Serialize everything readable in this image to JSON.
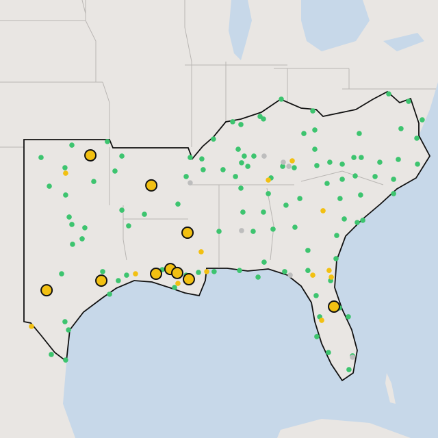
{
  "layers": [
    {
      "color": "#3dc46f",
      "outline": false,
      "points": [
        [
          -96.82,
          36.72
        ],
        [
          -94.71,
          36.9
        ],
        [
          -98.65,
          36.09
        ],
        [
          -97.23,
          35.57
        ],
        [
          -93.85,
          36.16
        ],
        [
          -94.26,
          35.4
        ],
        [
          -98.16,
          34.63
        ],
        [
          -97.19,
          34.18
        ],
        [
          -95.52,
          34.87
        ],
        [
          -93.85,
          33.41
        ],
        [
          -96.98,
          33.06
        ],
        [
          -96.05,
          32.51
        ],
        [
          -96.82,
          32.68
        ],
        [
          -96.21,
          31.95
        ],
        [
          -96.78,
          31.67
        ],
        [
          -93.45,
          32.61
        ],
        [
          -92.51,
          33.2
        ],
        [
          -90.52,
          33.72
        ],
        [
          -90.03,
          35.12
        ],
        [
          -89.1,
          36.02
        ],
        [
          -89.79,
          36.09
        ],
        [
          -88.41,
          37.03
        ],
        [
          -87.27,
          37.91
        ],
        [
          -86.78,
          37.77
        ],
        [
          -85.64,
          38.18
        ],
        [
          -85.44,
          38.05
        ],
        [
          -84.38,
          39.06
        ],
        [
          -82.51,
          38.46
        ],
        [
          -83.04,
          37.31
        ],
        [
          -82.39,
          37.49
        ],
        [
          -79.75,
          37.31
        ],
        [
          -78.0,
          39.33
        ],
        [
          -76.82,
          38.95
        ],
        [
          -77.27,
          37.56
        ],
        [
          -76.33,
          37.07
        ],
        [
          -76.01,
          38.01
        ],
        [
          -86.94,
          36.51
        ],
        [
          -86.58,
          36.16
        ],
        [
          -86.01,
          36.16
        ],
        [
          -86.37,
          35.64
        ],
        [
          -86.74,
          35.82
        ],
        [
          -87.84,
          35.47
        ],
        [
          -89.02,
          35.47
        ],
        [
          -87.1,
          35.12
        ],
        [
          -86.78,
          34.53
        ],
        [
          -84.99,
          35.05
        ],
        [
          -84.3,
          35.64
        ],
        [
          -83.61,
          35.57
        ],
        [
          -82.39,
          36.51
        ],
        [
          -82.27,
          35.68
        ],
        [
          -81.5,
          35.85
        ],
        [
          -80.76,
          35.75
        ],
        [
          -80.07,
          36.09
        ],
        [
          -79.63,
          36.09
        ],
        [
          -78.53,
          35.85
        ],
        [
          -77.43,
          35.99
        ],
        [
          -76.29,
          35.75
        ],
        [
          -81.66,
          34.77
        ],
        [
          -80.76,
          34.98
        ],
        [
          -79.99,
          35.15
        ],
        [
          -78.81,
          35.12
        ],
        [
          -77.71,
          34.98
        ],
        [
          -79.67,
          34.18
        ],
        [
          -80.89,
          34.0
        ],
        [
          -77.71,
          34.25
        ],
        [
          -83.28,
          34.0
        ],
        [
          -84.1,
          33.66
        ],
        [
          -85.15,
          34.25
        ],
        [
          -85.44,
          33.31
        ],
        [
          -86.66,
          33.31
        ],
        [
          -86.05,
          32.33
        ],
        [
          -88.08,
          32.33
        ],
        [
          -84.87,
          32.44
        ],
        [
          -83.57,
          32.54
        ],
        [
          -80.64,
          32.96
        ],
        [
          -79.87,
          32.78
        ],
        [
          -79.54,
          32.89
        ],
        [
          -81.09,
          32.12
        ],
        [
          -82.8,
          31.36
        ],
        [
          -85.4,
          30.76
        ],
        [
          -86.86,
          30.34
        ],
        [
          -85.76,
          30.0
        ],
        [
          -84.18,
          30.28
        ],
        [
          -82.8,
          30.34
        ],
        [
          -82.31,
          29.06
        ],
        [
          -81.45,
          29.82
        ],
        [
          -81.13,
          30.94
        ],
        [
          -82.1,
          27.98
        ],
        [
          -80.4,
          27.98
        ],
        [
          -82.27,
          26.97
        ],
        [
          -80.93,
          28.43
        ],
        [
          -81.58,
          26.16
        ],
        [
          -80.15,
          25.99
        ],
        [
          -80.36,
          25.29
        ],
        [
          -88.37,
          30.28
        ],
        [
          -89.3,
          30.24
        ],
        [
          -90.03,
          30.1
        ],
        [
          -91.45,
          30.38
        ],
        [
          -93.57,
          30.1
        ],
        [
          -94.06,
          29.82
        ],
        [
          -94.58,
          29.13
        ],
        [
          -97.43,
          30.17
        ],
        [
          -97.23,
          27.73
        ],
        [
          -97.02,
          27.31
        ],
        [
          -98.04,
          26.06
        ],
        [
          -97.19,
          25.78
        ],
        [
          -94.99,
          30.28
        ],
        [
          -90.72,
          29.47
        ]
      ]
    },
    {
      "color": "#f2c012",
      "outline": false,
      "points": [
        [
          -97.19,
          35.29
        ],
        [
          -83.73,
          35.92
        ],
        [
          -85.15,
          34.94
        ],
        [
          -89.14,
          31.29
        ],
        [
          -93.04,
          30.17
        ],
        [
          -88.81,
          30.28
        ],
        [
          -81.9,
          33.38
        ],
        [
          -81.54,
          30.34
        ],
        [
          -81.41,
          30.0
        ],
        [
          -82.51,
          30.1
        ],
        [
          -99.22,
          27.49
        ],
        [
          -90.52,
          29.68
        ],
        [
          -81.98,
          27.8
        ]
      ]
    },
    {
      "color": "#bdbdbd",
      "outline": false,
      "points": [
        [
          -85.4,
          36.16
        ],
        [
          -84.26,
          35.85
        ],
        [
          -83.93,
          35.64
        ],
        [
          -89.79,
          34.8
        ],
        [
          -86.74,
          32.37
        ],
        [
          -83.85,
          30.1
        ],
        [
          -80.15,
          25.92
        ]
      ]
    },
    {
      "color": "#f2c012",
      "outline": true,
      "points": [
        [
          -95.72,
          36.2
        ],
        [
          -92.1,
          34.67
        ],
        [
          -89.95,
          32.26
        ],
        [
          -98.32,
          29.33
        ],
        [
          -95.07,
          29.82
        ],
        [
          -91.82,
          30.17
        ],
        [
          -90.97,
          30.41
        ],
        [
          -90.56,
          30.21
        ],
        [
          -89.87,
          29.89
        ],
        [
          -81.25,
          28.5
        ]
      ]
    }
  ]
}
